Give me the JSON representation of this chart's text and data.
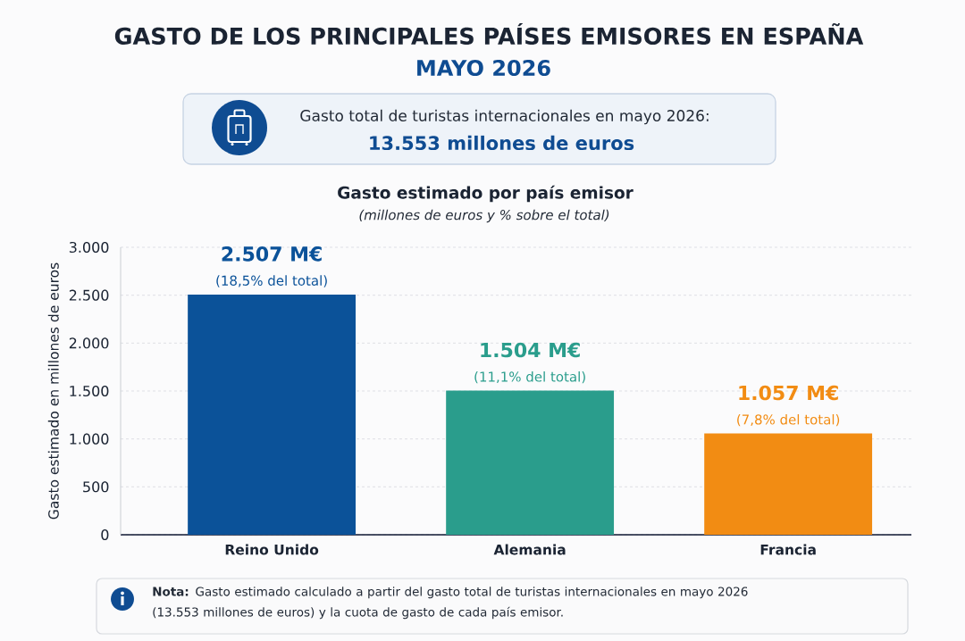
{
  "chart_data": {
    "type": "bar",
    "title": "GASTO DE LOS PRINCIPALES PAÍSES EMISORES EN ESPAÑA",
    "subtitle": "MAYO 2026",
    "ylabel": "Gasto estimado en millones de euros",
    "categories": [
      "Reino Unido",
      "Alemania",
      "Francia"
    ],
    "values": [
      2507,
      1504,
      1057
    ],
    "colors": [
      "#0b5299",
      "#2a9d8c",
      "#f28c13"
    ],
    "value_labels": [
      "2.507 M€",
      "1.504 M€",
      "1.057 M€"
    ],
    "ylim": [
      0,
      3000
    ],
    "yticks": [
      0,
      500,
      {
        "value": 1000,
        "label": "1.000"
      },
      {
        "value": 1500,
        "label": "1.500"
      },
      {
        "value": 2000,
        "label": "2.000"
      },
      {
        "value": 2500,
        "label": "2.500"
      },
      {
        "value": 3000,
        "label": "3.000"
      }
    ],
    "grid": "y",
    "annotations": [
      {
        "text": "(18,5% del total)",
        "x": "Reino Unido",
        "y": 2507
      },
      {
        "text": "(11,1% del total)",
        "x": "Alemania",
        "y": 1504
      },
      {
        "text": "(7,8% del total)",
        "x": "Francia",
        "y": 1057
      },
      "Gasto total de turistas internacionales en mayo 2026:",
      "13.553 millones de euros",
      "Gasto estimado por país emisor",
      "(millones de euros y % sobre el total)",
      "**Nota:** Gasto estimado calculado a partir del gasto total de turistas internacionales en mayo 2026 (13.553 millones de euros) y la cuota de gasto de cada país emisor."
    ]
  }
}
